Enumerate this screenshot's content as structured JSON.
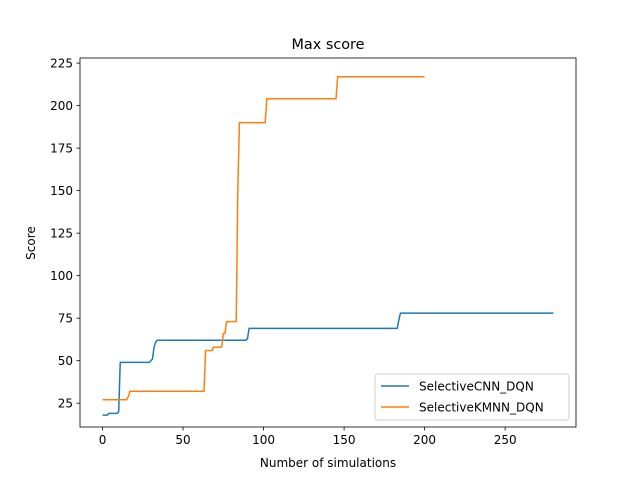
{
  "chart_data": {
    "type": "line",
    "title": "Max score",
    "xlabel": "Number of simulations",
    "ylabel": "Score",
    "xlim": [
      -14,
      294
    ],
    "ylim": [
      11,
      228
    ],
    "xticks": [
      0,
      50,
      100,
      150,
      200,
      250
    ],
    "yticks": [
      25,
      50,
      75,
      100,
      125,
      150,
      175,
      200,
      225
    ],
    "grid": false,
    "legend_position": "lower-right",
    "series": [
      {
        "name": "SelectiveCNN_DQN",
        "color": "#1f77b4",
        "points": [
          [
            0,
            18
          ],
          [
            3,
            18
          ],
          [
            4,
            19
          ],
          [
            9,
            19
          ],
          [
            10,
            20
          ],
          [
            11,
            49
          ],
          [
            12,
            49
          ],
          [
            29,
            49
          ],
          [
            30,
            50
          ],
          [
            31,
            51
          ],
          [
            32,
            58
          ],
          [
            33,
            61
          ],
          [
            34,
            62
          ],
          [
            35,
            62
          ],
          [
            89,
            62
          ],
          [
            90,
            63
          ],
          [
            91,
            69
          ],
          [
            92,
            69
          ],
          [
            183,
            69
          ],
          [
            184,
            74
          ],
          [
            185,
            78
          ],
          [
            186,
            78
          ],
          [
            280,
            78
          ]
        ]
      },
      {
        "name": "SelectiveKMNN_DQN",
        "color": "#ff7f0e",
        "points": [
          [
            0,
            27
          ],
          [
            15,
            27
          ],
          [
            16,
            29
          ],
          [
            17,
            32
          ],
          [
            18,
            32
          ],
          [
            63,
            32
          ],
          [
            64,
            56
          ],
          [
            68,
            56
          ],
          [
            69,
            58
          ],
          [
            74,
            58
          ],
          [
            75,
            66
          ],
          [
            76,
            66
          ],
          [
            77,
            73
          ],
          [
            83,
            73
          ],
          [
            84,
            150
          ],
          [
            85,
            190
          ],
          [
            86,
            190
          ],
          [
            101,
            190
          ],
          [
            102,
            204
          ],
          [
            103,
            204
          ],
          [
            145,
            204
          ],
          [
            146,
            217
          ],
          [
            147,
            217
          ],
          [
            200,
            217
          ]
        ]
      }
    ]
  }
}
